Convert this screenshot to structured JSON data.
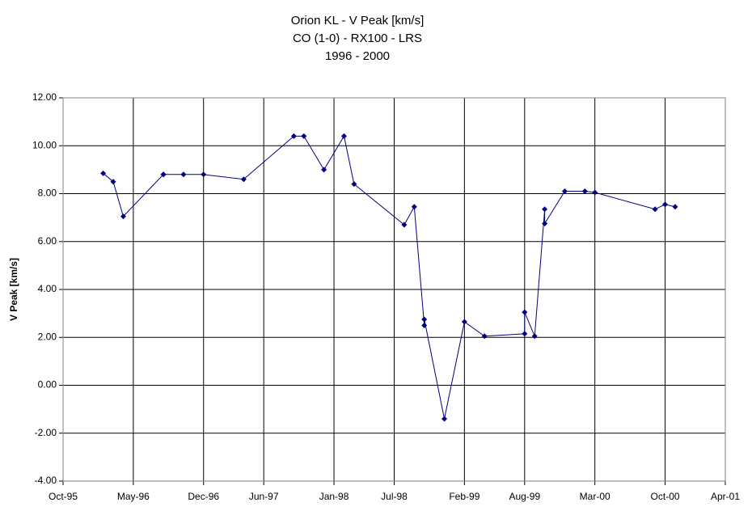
{
  "chart_data": {
    "type": "line",
    "title": [
      "Orion KL - V Peak [km/s]",
      "CO (1-0) - RX100 - LRS",
      "1996 - 2000"
    ],
    "y_label": "V Peak [km/s]",
    "x": [
      "1996-02",
      "1996-03",
      "1996-04",
      "1996-08",
      "1996-08",
      "1996-10",
      "1996-12",
      "1997-04",
      "1997-09",
      "1997-10",
      "1997-12",
      "1998-02",
      "1998-03",
      "1998-08",
      "1998-09",
      "1998-10",
      "1998-10",
      "1998-12",
      "1999-02",
      "1999-04",
      "1999-08",
      "1999-08",
      "1999-09",
      "1999-10",
      "1999-10",
      "1999-12",
      "2000-02",
      "2000-03",
      "2000-09",
      "2000-10",
      "2000-11"
    ],
    "series": [
      {
        "color": "#000080",
        "values": [
          8.85,
          8.5,
          7.05,
          8.8,
          8.8,
          8.8,
          8.8,
          8.6,
          10.4,
          10.4,
          9.0,
          10.4,
          8.4,
          6.7,
          7.45,
          2.5,
          2.75,
          -1.4,
          2.65,
          2.05,
          2.15,
          3.05,
          2.05,
          7.35,
          6.75,
          8.1,
          8.1,
          8.05,
          7.35,
          7.55,
          7.45
        ]
      }
    ],
    "xlim": [
      "1995-10",
      "2001-04"
    ],
    "xticks": [
      {
        "value": "1995-10",
        "label": "Oct-95"
      },
      {
        "value": "1996-05",
        "label": "May-96"
      },
      {
        "value": "1996-12",
        "label": "Dec-96"
      },
      {
        "value": "1997-06",
        "label": "Jun-97"
      },
      {
        "value": "1998-01",
        "label": "Jan-98"
      },
      {
        "value": "1998-07",
        "label": "Jul-98"
      },
      {
        "value": "1999-02",
        "label": "Feb-99"
      },
      {
        "value": "1999-08",
        "label": "Aug-99"
      },
      {
        "value": "2000-03",
        "label": "Mar-00"
      },
      {
        "value": "2000-10",
        "label": "Oct-00"
      },
      {
        "value": "2001-04",
        "label": "Apr-01"
      }
    ],
    "ylim": [
      -4,
      12
    ],
    "yticks": [
      {
        "value": -4,
        "label": "-4.00"
      },
      {
        "value": -2,
        "label": "-2.00"
      },
      {
        "value": 0,
        "label": "0.00"
      },
      {
        "value": 2,
        "label": "2.00"
      },
      {
        "value": 4,
        "label": "4.00"
      },
      {
        "value": 6,
        "label": "6.00"
      },
      {
        "value": 8,
        "label": "8.00"
      },
      {
        "value": 10,
        "label": "10.00"
      },
      {
        "value": 12,
        "label": "12.00"
      }
    ],
    "grid": true
  }
}
